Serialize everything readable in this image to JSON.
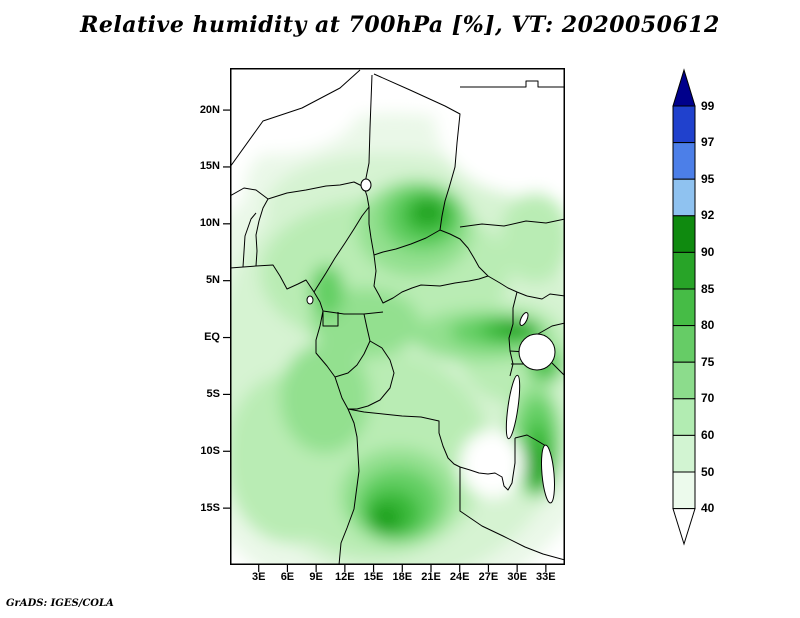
{
  "title": "Relative humidity at 700hPa [%], VT: 2020050612",
  "credit": "GrADS: IGES/COLA",
  "axes": {
    "lat_ticks": [
      {
        "label": "20N",
        "deg": 20
      },
      {
        "label": "15N",
        "deg": 15
      },
      {
        "label": "10N",
        "deg": 10
      },
      {
        "label": "5N",
        "deg": 5
      },
      {
        "label": "EQ",
        "deg": 0
      },
      {
        "label": "5S",
        "deg": -5
      },
      {
        "label": "10S",
        "deg": -10
      },
      {
        "label": "15S",
        "deg": -15
      }
    ],
    "lon_ticks": [
      {
        "label": "3E",
        "deg": 3
      },
      {
        "label": "6E",
        "deg": 6
      },
      {
        "label": "9E",
        "deg": 9
      },
      {
        "label": "12E",
        "deg": 12
      },
      {
        "label": "15E",
        "deg": 15
      },
      {
        "label": "18E",
        "deg": 18
      },
      {
        "label": "21E",
        "deg": 21
      },
      {
        "label": "24E",
        "deg": 24
      },
      {
        "label": "27E",
        "deg": 27
      },
      {
        "label": "30E",
        "deg": 30
      },
      {
        "label": "33E",
        "deg": 33
      }
    ]
  },
  "colorbar": {
    "labels": [
      "99",
      "97",
      "95",
      "92",
      "90",
      "85",
      "80",
      "75",
      "70",
      "60",
      "50",
      "40"
    ],
    "colors": [
      "#00008b",
      "#2041cd",
      "#4c7fe8",
      "#8fc2f0",
      "#0f8a0f",
      "#28a428",
      "#46bc46",
      "#66cc66",
      "#8cdc8c",
      "#b2ecb2",
      "#d2f4d2",
      "#ecfaec",
      "#ffffff"
    ]
  },
  "chart_data": {
    "type": "heatmap",
    "title": "Relative humidity at 700hPa [%], VT: 2020050612",
    "units": "%",
    "levels": [
      40,
      50,
      60,
      70,
      75,
      80,
      85,
      90,
      92,
      95,
      97,
      99
    ],
    "level_colors": [
      "#ffffff",
      "#ecfaec",
      "#d2f4d2",
      "#b2ecb2",
      "#8cdc8c",
      "#66cc66",
      "#46bc46",
      "#28a428",
      "#0f8a0f",
      "#8fc2f0",
      "#4c7fe8",
      "#2041cd",
      "#00008b"
    ],
    "x_ticks": [
      "3E",
      "6E",
      "9E",
      "12E",
      "15E",
      "18E",
      "21E",
      "24E",
      "27E",
      "30E",
      "33E"
    ],
    "y_ticks": [
      "20N",
      "15N",
      "10N",
      "5N",
      "EQ",
      "5S",
      "10S",
      "15S"
    ],
    "legend_position": "right",
    "grid": false
  }
}
